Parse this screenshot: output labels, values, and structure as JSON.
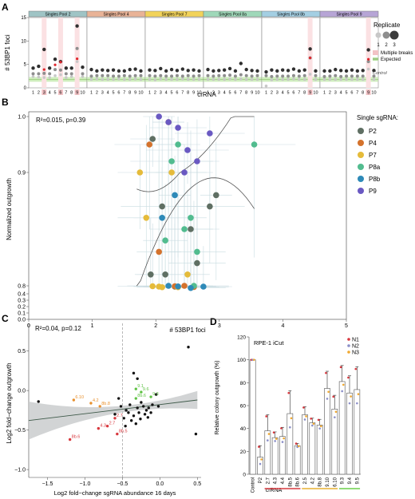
{
  "panels": {
    "a": "A",
    "b": "B",
    "c": "C",
    "d": "D"
  },
  "chart_data": [
    {
      "panel": "A",
      "type": "scatter",
      "ylabel": "# 53BP1 foci",
      "xlabel": "crRNA",
      "ylim": [
        0,
        15
      ],
      "yticks": [
        0,
        5,
        10,
        15
      ],
      "categories": [
        "1",
        "2",
        "3",
        "4",
        "5",
        "6",
        "7",
        "8",
        "9",
        "10"
      ],
      "facets": [
        {
          "title": "Singles Pool 2",
          "color": "#9fc4c5",
          "highlight": [
            3,
            6,
            9
          ],
          "top": [
            4.2,
            4.6,
            8.2,
            4.2,
            6.1,
            5.6,
            4.2,
            4.2,
            13.2,
            4.4
          ],
          "mid": [
            3.0,
            3.0,
            3.1,
            3.0,
            3.9,
            3.8,
            3.0,
            3.0,
            8.4,
            3.0
          ],
          "low": [
            2.4,
            2.3,
            2.2,
            2.2,
            2.6,
            2.8,
            2.2,
            2.4,
            5.6,
            2.4
          ],
          "red": [
            null,
            null,
            3.9,
            null,
            4.9,
            5.5,
            null,
            null,
            6.2,
            null
          ]
        },
        {
          "title": "Singles Pool 4",
          "color": "#e9b397",
          "highlight": [],
          "top": [
            3.9,
            3.6,
            3.8,
            3.7,
            3.8,
            3.6,
            3.6,
            3.9,
            4.0,
            3.6
          ],
          "mid": [
            2.5,
            2.6,
            2.6,
            2.6,
            2.5,
            2.5,
            2.6,
            2.5,
            2.6,
            2.6
          ],
          "low": [
            1.8,
            1.9,
            1.8,
            1.8,
            1.8,
            1.9,
            1.8,
            1.8,
            1.9,
            1.8
          ],
          "red": []
        },
        {
          "title": "Singles Pool 7",
          "color": "#f2d35a",
          "highlight": [],
          "top": [
            3.8,
            3.7,
            4.1,
            3.6,
            3.9,
            3.7,
            4.0,
            3.7,
            3.8,
            3.6
          ],
          "mid": [
            2.6,
            2.5,
            2.6,
            2.5,
            2.5,
            2.6,
            2.5,
            2.6,
            2.5,
            2.6
          ],
          "low": [
            1.8,
            1.7,
            1.9,
            1.8,
            1.8,
            1.8,
            1.9,
            1.8,
            1.8,
            1.8
          ],
          "red": []
        },
        {
          "title": "Singles Pool 8a",
          "color": "#9fd8b9",
          "highlight": [],
          "top": [
            3.9,
            3.6,
            3.7,
            3.8,
            4.1,
            3.6,
            5.2,
            3.9,
            3.7,
            3.6
          ],
          "mid": [
            2.6,
            2.5,
            2.6,
            2.6,
            2.7,
            2.5,
            2.8,
            2.6,
            2.5,
            2.6
          ],
          "low": [
            1.8,
            1.8,
            1.8,
            1.8,
            1.9,
            1.8,
            1.9,
            1.8,
            1.8,
            1.8
          ],
          "red": []
        },
        {
          "title": "Singles Pool 8b",
          "color": "#a4cfe3",
          "highlight": [
            9
          ],
          "top": [
            3.4,
            3.8,
            3.6,
            3.8,
            3.7,
            4.0,
            3.6,
            3.8,
            8.3,
            3.6
          ],
          "mid": [
            2.6,
            2.4,
            2.5,
            2.5,
            2.5,
            2.6,
            2.5,
            2.6,
            6.4,
            2.6
          ],
          "low": [
            0.4,
            1.7,
            1.8,
            1.8,
            1.8,
            1.9,
            1.8,
            1.8,
            2.9,
            1.8
          ],
          "red": [
            null,
            null,
            null,
            null,
            null,
            null,
            null,
            null,
            6.4,
            null
          ]
        },
        {
          "title": "Singles Pool 9",
          "color": "#b7a5d6",
          "highlight": [
            9
          ],
          "top": [
            3.6,
            3.6,
            3.9,
            3.7,
            3.6,
            3.8,
            3.6,
            3.7,
            8.1,
            3.7
          ],
          "mid": [
            2.4,
            2.5,
            2.6,
            2.4,
            2.5,
            2.5,
            2.5,
            2.5,
            5.6,
            2.5
          ],
          "low": [
            1.8,
            1.8,
            1.8,
            1.8,
            1.8,
            1.8,
            1.8,
            1.8,
            4.0,
            1.8
          ],
          "red": [
            null,
            null,
            null,
            null,
            null,
            null,
            null,
            null,
            6.1,
            null
          ]
        }
      ],
      "legend": {
        "title": "Replicate",
        "labels": [
          "1",
          "2",
          "3"
        ],
        "multiple_breaks": "Multiple breaks",
        "expected": "Expected"
      },
      "annotation": "Control"
    },
    {
      "panel": "B",
      "type": "scatter",
      "annotation": "R²=0.015, p=0.39",
      "xlabel": "# 53BP1 foci",
      "ylabel": "Normalized outgrowth",
      "xlim": [
        0,
        5
      ],
      "xticks": [
        0,
        1,
        2,
        3,
        4,
        5
      ],
      "yticks": [
        0.0,
        0.1,
        0.2,
        0.3,
        0.4,
        0.8,
        0.9,
        1.0
      ],
      "legend_title": "Single sgRNA:",
      "series": [
        {
          "name": "P2",
          "color": "#5f6f63",
          "points": [
            [
              1.92,
              0.81
            ],
            [
              2.15,
              0.81
            ],
            [
              2.3,
              0.76
            ],
            [
              2.55,
              0.85
            ],
            [
              2.85,
              0.87
            ],
            [
              2.95,
              0.88
            ],
            [
              2.65,
              0.82
            ],
            [
              2.1,
              0.87
            ],
            [
              1.95,
              0.96
            ]
          ]
        },
        {
          "name": "P4",
          "color": "#d4722c",
          "points": [
            [
              1.9,
              0.95
            ],
            [
              2.2,
              0.99
            ],
            [
              2.45,
              0.8
            ],
            [
              2.3,
              0.78
            ],
            [
              2.05,
              0.83
            ],
            [
              2.6,
              0.74
            ]
          ]
        },
        {
          "name": "P7",
          "color": "#e5bb3a",
          "points": [
            [
              1.75,
              0.9
            ],
            [
              1.95,
              0.78
            ],
            [
              2.05,
              0.76
            ],
            [
              1.85,
              0.86
            ],
            [
              2.35,
              0.73
            ],
            [
              2.5,
              0.81
            ],
            [
              2.25,
              0.9
            ],
            [
              2.1,
              0.73
            ]
          ]
        },
        {
          "name": "P8a",
          "color": "#52bc8f",
          "points": [
            [
              2.25,
              0.92
            ],
            [
              2.35,
              0.95
            ],
            [
              2.45,
              0.85
            ],
            [
              2.55,
              0.86
            ],
            [
              2.65,
              0.83
            ],
            [
              3.55,
              0.95
            ],
            [
              2.15,
              0.84
            ],
            [
              2.6,
              0.8
            ]
          ]
        },
        {
          "name": "P8b",
          "color": "#2e8ab8",
          "points": [
            [
              2.1,
              0.86
            ],
            [
              2.2,
              0.8
            ],
            [
              2.35,
              0.77
            ],
            [
              2.55,
              0.69
            ],
            [
              2.3,
              0.88
            ],
            [
              2.75,
              0.76
            ]
          ]
        },
        {
          "name": "P9",
          "color": "#6a59c2",
          "points": [
            [
              2.2,
              0.99
            ],
            [
              2.35,
              0.98
            ],
            [
              2.5,
              0.94
            ],
            [
              2.65,
              0.92
            ],
            [
              2.85,
              0.97
            ],
            [
              2.05,
              1.0
            ],
            [
              2.45,
              0.9
            ]
          ]
        }
      ],
      "fit": {
        "x": [
          1.7,
          3.55
        ],
        "y": [
          0.84,
          0.97
        ]
      }
    },
    {
      "panel": "C",
      "type": "scatter",
      "annotation": "R²=0.04, p=0.12",
      "xlabel": "Log2 fold−change sgRNA abundance 16 days",
      "ylabel": "Log2 fold−change outgrowth",
      "xlim": [
        -1.75,
        0.55
      ],
      "ylim": [
        -1.1,
        0.85
      ],
      "xticks": [
        -1.5,
        -1.0,
        -0.5,
        0.0,
        0.5
      ],
      "xticklabels": [
        "−1.5",
        "−1.0",
        "−0.5",
        "0.0",
        "0.5"
      ],
      "yticks": [
        -1.0,
        -0.5,
        0.0,
        0.5
      ],
      "yticklabels": [
        "−1.0",
        "−0.5",
        "0.0",
        "0.5"
      ],
      "vline": -0.5,
      "labels": [
        {
          "text": "6.10",
          "x": -1.15,
          "y": -0.12,
          "color": "#e8912f"
        },
        {
          "text": "4.2",
          "x": -0.92,
          "y": -0.16,
          "color": "#e8912f"
        },
        {
          "text": "8b.8",
          "x": -0.8,
          "y": -0.2,
          "color": "#e8912f"
        },
        {
          "text": "8b.6",
          "x": -1.2,
          "y": -0.62,
          "color": "#d8383e"
        },
        {
          "text": "2.7",
          "x": -0.6,
          "y": -0.35,
          "color": "#d8383e"
        },
        {
          "text": "4.3",
          "x": -0.82,
          "y": -0.48,
          "color": "#d8383e"
        },
        {
          "text": "2.7",
          "x": -0.7,
          "y": -0.45,
          "color": "#d8383e"
        },
        {
          "text": "8b.5",
          "x": -0.57,
          "y": -0.55,
          "color": "#d8383e"
        },
        {
          "text": "8b.6",
          "x": -0.32,
          "y": -0.1,
          "color": "#5fc244"
        },
        {
          "text": "9.6",
          "x": -0.25,
          "y": -0.02,
          "color": "#5fc244"
        },
        {
          "text": "9.3",
          "x": -0.12,
          "y": -0.08,
          "color": "#5fc244"
        },
        {
          "text": "9.1",
          "x": -0.32,
          "y": 0.02,
          "color": "#5fc244"
        }
      ],
      "points": [
        [
          -1.62,
          -0.14
        ],
        [
          -0.55,
          -0.1
        ],
        [
          -0.45,
          -0.25
        ],
        [
          -0.4,
          -0.18
        ],
        [
          -0.35,
          -0.32
        ],
        [
          -0.3,
          -0.22
        ],
        [
          -0.28,
          -0.28
        ],
        [
          -0.25,
          -0.15
        ],
        [
          -0.22,
          -0.2
        ],
        [
          -0.2,
          -0.3
        ],
        [
          -0.18,
          -0.25
        ],
        [
          -0.15,
          -0.22
        ],
        [
          -0.12,
          -0.28
        ],
        [
          -0.1,
          -0.18
        ],
        [
          -0.42,
          -0.28
        ],
        [
          -0.38,
          -0.38
        ],
        [
          -0.32,
          -0.42
        ],
        [
          -0.48,
          -0.35
        ],
        [
          -0.26,
          -0.36
        ],
        [
          -0.46,
          -0.45
        ],
        [
          -0.3,
          0.15
        ],
        [
          -0.35,
          0.22
        ],
        [
          0.38,
          0.55
        ],
        [
          0.48,
          -0.55
        ],
        [
          -0.05,
          -0.05
        ],
        [
          -0.02,
          -0.2
        ],
        [
          -0.6,
          -0.3
        ],
        [
          -0.52,
          -0.2
        ],
        [
          -0.16,
          -0.34
        ]
      ],
      "fit": {
        "x": [
          -1.75,
          0.5
        ],
        "y": [
          -0.38,
          -0.12
        ]
      }
    },
    {
      "panel": "D",
      "type": "bar",
      "title": "RPE-1 iCut",
      "ylabel": "Relative colony outgrowth (%)",
      "xlabel": "crRNA",
      "ylim": [
        0,
        120
      ],
      "yticks": [
        0,
        20,
        40,
        60,
        80,
        100,
        120
      ],
      "categories": [
        "Control",
        "P2",
        "2.7",
        "4.3",
        "4.4",
        "8b.5",
        "8b.6",
        "2.5",
        "4.2",
        "8b.8",
        "9.10",
        "6.10",
        "9.3",
        "9.4",
        "9.5"
      ],
      "values": [
        100,
        15,
        38,
        32,
        33,
        53,
        25,
        52,
        45,
        43,
        75,
        57,
        81,
        71,
        74
      ],
      "errors": [
        0,
        10,
        14,
        5,
        8,
        20,
        2,
        7,
        4,
        5,
        15,
        12,
        14,
        15,
        20
      ],
      "groups": [
        {
          "from": 2,
          "to": 6,
          "color": "#d8383e"
        },
        {
          "from": 7,
          "to": 11,
          "color": "#e8b030"
        },
        {
          "from": 12,
          "to": 14,
          "color": "#6ccf4a"
        }
      ],
      "series": [
        {
          "name": "N1",
          "color": "#d8383e"
        },
        {
          "name": "N2",
          "color": "#8b8fc8"
        },
        {
          "name": "N3",
          "color": "#f0a830"
        }
      ]
    }
  ]
}
